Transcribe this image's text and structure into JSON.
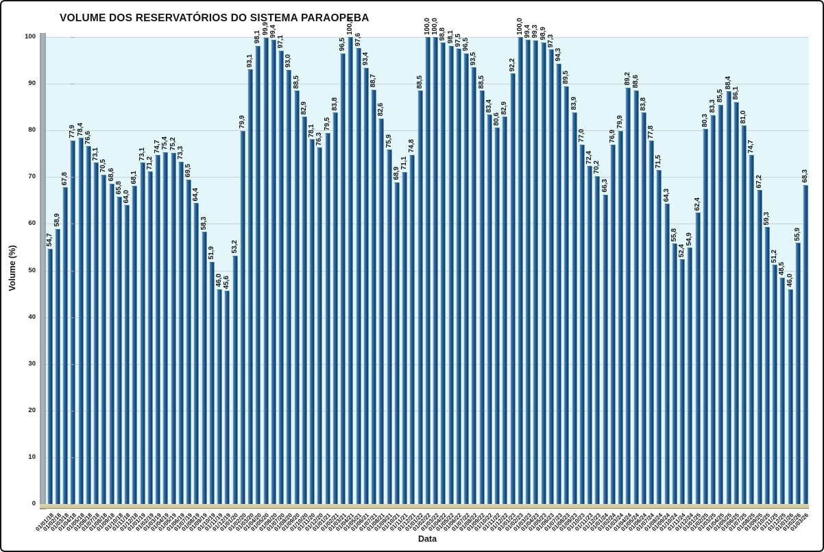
{
  "window": {
    "title": "VOLUME DOS RESERVATÓRIOS DO SISTEMA PARAOPEBA"
  },
  "chart_data": {
    "type": "bar",
    "title": "VOLUME DOS RESERVATÓRIOS DO SISTEMA PARAOPEBA",
    "xlabel": "Data",
    "ylabel": "Volume (%)",
    "ylim": [
      0,
      100
    ],
    "yticks": [
      0,
      10,
      20,
      30,
      40,
      50,
      60,
      70,
      80,
      90,
      100
    ],
    "grid": true,
    "legend_position": "none",
    "value_label_decimal_separator": ",",
    "colors": {
      "bar_main": "#2e6da8",
      "bar_highlight": "#a3c4e0",
      "bar_shadow": "#16486f",
      "plot_background": "#e3f7fa",
      "gridline": "#c9d2d4",
      "wall": "#aab7bd",
      "floor": "#d5cda0",
      "text": "#141414"
    },
    "categories": [
      "01/01/18",
      "01/02/18",
      "01/03/18",
      "01/04/18",
      "01/05/18",
      "01/06/18",
      "01/07/18",
      "01/08/18",
      "01/09/18",
      "01/10/18",
      "01/11/18",
      "01/12/18",
      "01/01/19",
      "01/02/19",
      "01/03/19",
      "01/04/19",
      "01/05/19",
      "01/06/19",
      "01/07/19",
      "01/08/19",
      "01/09/19",
      "01/10/19",
      "01/11/19",
      "01/12/19",
      "01/01/20",
      "01/02/20",
      "01/03/20",
      "01/04/20",
      "01/05/20",
      "01/06/20",
      "01/07/20",
      "01/08/20",
      "01/09/20",
      "01/10/20",
      "01/11/20",
      "01/12/20",
      "01/01/21",
      "01/02/21",
      "01/03/21",
      "01/04/21",
      "01/05/21",
      "01/06/21",
      "01/07/21",
      "01/08/21",
      "01/09/21",
      "01/10/21",
      "01/11/21",
      "01/12/21",
      "01/01/22",
      "01/02/22",
      "01/03/22",
      "01/04/22",
      "01/05/22",
      "01/06/22",
      "01/07/22",
      "01/08/22",
      "01/09/22",
      "01/10/22",
      "01/11/22",
      "01/12/22",
      "01/01/23",
      "01/02/23",
      "01/03/23",
      "01/04/23",
      "01/05/23",
      "01/06/23",
      "01/07/23",
      "01/08/23",
      "01/09/23",
      "01/10/23",
      "01/11/23",
      "01/12/23",
      "01/01/24",
      "01/02/24",
      "01/03/24",
      "01/04/24",
      "01/05/24",
      "01/06/24",
      "01/07/24",
      "01/08/24",
      "01/09/24",
      "01/10/24",
      "01/11/24",
      "01/12/24",
      "01/01/25",
      "01/02/25",
      "01/03/25",
      "01/04/25",
      "01/05/25",
      "01/06/25",
      "01/07/25",
      "01/08/25",
      "01/09/25",
      "01/10/25",
      "01/11/25",
      "01/12/25",
      "01/01/26",
      "01/02/26",
      "01/03/26"
    ],
    "values": [
      54.7,
      58.9,
      67.8,
      77.9,
      78.4,
      76.6,
      73.1,
      70.5,
      68.6,
      65.8,
      64.0,
      68.1,
      73.1,
      71.2,
      74.7,
      75.4,
      75.2,
      73.3,
      69.5,
      64.4,
      58.3,
      51.9,
      46.0,
      45.6,
      53.2,
      79.9,
      93.1,
      98.1,
      99.9,
      99.4,
      97.1,
      93.0,
      88.5,
      82.9,
      78.1,
      76.3,
      79.5,
      83.8,
      96.5,
      100.0,
      97.6,
      93.4,
      88.7,
      82.6,
      75.9,
      68.9,
      71.1,
      74.8,
      88.5,
      100.0,
      100.0,
      98.8,
      98.1,
      97.5,
      96.5,
      93.5,
      88.5,
      83.4,
      80.6,
      82.9,
      92.2,
      100.0,
      99.4,
      99.3,
      98.9,
      97.3,
      94.3,
      89.5,
      83.9,
      77.0,
      72.4,
      70.2,
      66.3,
      76.9,
      79.9,
      89.2,
      88.6,
      83.8,
      77.8,
      71.5,
      64.3,
      55.8,
      52.4,
      54.9,
      62.4,
      80.3,
      83.3,
      85.5,
      88.4,
      86.1,
      81.0,
      74.7,
      67.2,
      59.3,
      51.2,
      48.5,
      46.0,
      55.9,
      68.3
    ]
  }
}
